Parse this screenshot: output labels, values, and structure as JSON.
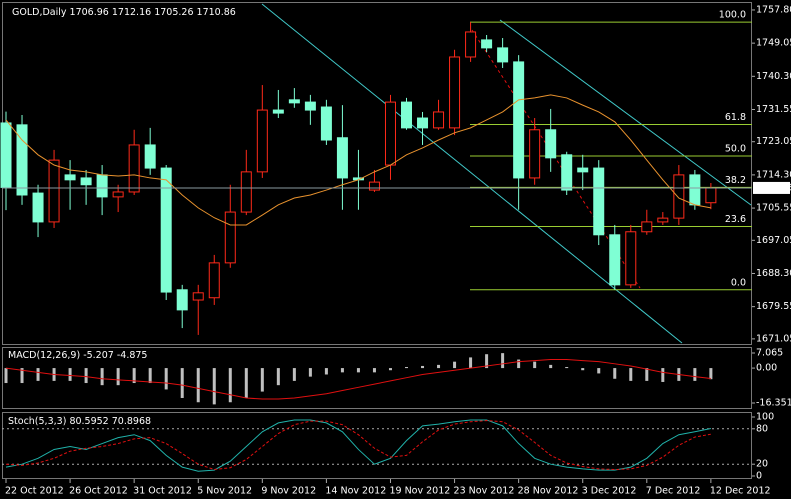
{
  "chart_data": [
    {
      "type": "candlestick",
      "title": "GOLD,Daily",
      "categories": [
        "22 Oct 2012",
        null,
        null,
        null,
        "26 Oct 2012",
        null,
        null,
        null,
        "31 Oct 2012",
        null,
        null,
        null,
        "5 Nov 2012",
        null,
        null,
        null,
        "9 Nov 2012",
        null,
        null,
        null,
        "14 Nov 2012",
        null,
        null,
        null,
        "19 Nov 2012",
        null,
        null,
        null,
        "23 Nov 2012",
        null,
        null,
        null,
        "28 Nov 2012",
        null,
        null,
        null,
        "3 Dec 2012",
        null,
        null,
        null,
        "7 Dec 2012",
        null,
        null,
        null,
        "12 Dec 2012"
      ],
      "open": [
        1728.0,
        1727.5,
        1709.5,
        1701.9,
        1714.3,
        1713.5,
        1714.3,
        1708.5,
        1709.8,
        1722.2,
        1716.1,
        1684.0,
        1681.3,
        1681.9,
        1691.1,
        1704.5,
        1715.1,
        1731.4,
        1734.1,
        1733.5,
        1732.2,
        1724.1,
        1713.5,
        1710.3,
        1716.9,
        1733.5,
        1729.3,
        1726.7,
        1726.7,
        1745.4,
        1749.9,
        1747.8,
        1744.1,
        1713.5,
        1726.2,
        1719.6,
        1716.1,
        1716.1,
        1698.5,
        1685.3,
        1699.3,
        1701.9,
        1702.9,
        1714.3,
        1706.96
      ],
      "high": [
        1731.0,
        1730.1,
        1711.7,
        1720.9,
        1718.2,
        1715.6,
        1716.9,
        1711.7,
        1726.2,
        1726.7,
        1716.9,
        1685.3,
        1685.3,
        1693.2,
        1711.7,
        1720.9,
        1738.0,
        1736.7,
        1737.2,
        1735.4,
        1734.1,
        1732.7,
        1720.9,
        1715.6,
        1735.4,
        1734.6,
        1730.9,
        1734.1,
        1747.3,
        1754.6,
        1751.2,
        1750.4,
        1745.9,
        1729.3,
        1731.7,
        1720.4,
        1719.6,
        1718.2,
        1701.1,
        1701.1,
        1705.1,
        1704.5,
        1716.9,
        1715.6,
        1712.16
      ],
      "low": [
        1705.0,
        1706.4,
        1697.9,
        1700.3,
        1705.1,
        1706.4,
        1703.7,
        1704.5,
        1709.0,
        1714.3,
        1681.3,
        1673.9,
        1672.1,
        1680.0,
        1689.8,
        1703.7,
        1713.5,
        1729.3,
        1732.0,
        1727.5,
        1722.2,
        1705.1,
        1705.1,
        1709.8,
        1713.0,
        1726.2,
        1722.2,
        1726.2,
        1724.8,
        1744.1,
        1746.7,
        1742.5,
        1705.1,
        1711.7,
        1715.1,
        1709.0,
        1710.3,
        1695.8,
        1684.0,
        1684.5,
        1698.5,
        1701.1,
        1701.1,
        1705.1,
        1705.26
      ],
      "close": [
        1711.0,
        1709.0,
        1701.9,
        1718.2,
        1713.0,
        1711.7,
        1708.5,
        1709.8,
        1722.2,
        1716.1,
        1683.4,
        1678.7,
        1683.2,
        1691.1,
        1704.5,
        1715.1,
        1731.4,
        1730.6,
        1733.3,
        1731.4,
        1723.5,
        1713.5,
        1713.0,
        1712.4,
        1733.5,
        1726.7,
        1726.7,
        1730.9,
        1745.4,
        1752.0,
        1747.8,
        1744.1,
        1713.5,
        1726.2,
        1718.8,
        1710.3,
        1715.1,
        1698.5,
        1685.3,
        1699.3,
        1701.9,
        1702.9,
        1714.3,
        1706.4,
        1710.86
      ],
      "up_color": "#ff2a1a",
      "down_color": "#7fffd4",
      "ma": {
        "color": "#e8922e",
        "values": [
          1728.8,
          1723.5,
          1719.6,
          1716.9,
          1715.6,
          1715.1,
          1714.3,
          1714.0,
          1714.3,
          1713.5,
          1713.0,
          1709.0,
          1705.6,
          1703.0,
          1701.1,
          1701.1,
          1703.7,
          1706.4,
          1708.2,
          1709.0,
          1710.3,
          1711.7,
          1713.0,
          1715.1,
          1716.9,
          1719.6,
          1721.4,
          1723.5,
          1725.4,
          1726.7,
          1728.8,
          1730.9,
          1734.1,
          1734.6,
          1735.4,
          1734.6,
          1732.7,
          1730.9,
          1728.3,
          1723.5,
          1718.2,
          1713.0,
          1708.2,
          1706.4,
          1705.6
        ]
      },
      "fib_color": "#9acd32",
      "fib_levels": [
        {
          "label": "100.0",
          "price": 1754.6
        },
        {
          "label": "61.8",
          "price": 1727.6
        },
        {
          "label": "50.0",
          "price": 1719.3
        },
        {
          "label": "38.2",
          "price": 1711.0
        },
        {
          "label": "23.6",
          "price": 1700.7
        },
        {
          "label": "0.0",
          "price": 1684.0
        }
      ],
      "ylim": [
        1669.7,
        1759.9
      ],
      "yticks": [
        {
          "value": 1757.8,
          "label": "1757.80"
        },
        1749.05,
        {
          "value": 1740.3,
          "label": "1740.30"
        },
        1731.55,
        1723.05,
        {
          "value": 1714.3,
          "label": "1714.30"
        },
        1705.55,
        1697.05,
        {
          "value": 1688.3,
          "label": "1688.30"
        },
        1679.55,
        1671.05
      ]
    },
    {
      "type": "macd",
      "title": "MACD(12,26,9)",
      "histogram": {
        "color": "#c0c0c0",
        "values": [
          -7,
          -7,
          -6,
          -6,
          -6,
          -7,
          -8,
          -8,
          -7,
          -7,
          -10,
          -14,
          -16,
          -17,
          -16,
          -14,
          -11,
          -8,
          -6,
          -4,
          -3,
          -2,
          -2,
          -2,
          -1,
          0.5,
          1,
          1.5,
          3,
          5,
          6.5,
          7,
          4,
          3,
          1.5,
          0.5,
          -1,
          -2.5,
          -5,
          -6,
          -6,
          -6.5,
          -6,
          -6,
          -5.207
        ]
      },
      "signal": {
        "color": "#e01010",
        "values": [
          0,
          -1,
          -2,
          -3,
          -3.5,
          -4,
          -5,
          -5.5,
          -6,
          -6.5,
          -7,
          -8,
          -9.5,
          -11,
          -12.5,
          -14,
          -14.5,
          -14.5,
          -14,
          -13,
          -12,
          -10.5,
          -9,
          -7.5,
          -6,
          -4.5,
          -3,
          -2,
          -1,
          0,
          1,
          2,
          3,
          3.5,
          4,
          4,
          3.5,
          3,
          2,
          1,
          -0.5,
          -2,
          -3,
          -4,
          -4.875
        ]
      },
      "ylim": [
        -19.16,
        9.875
      ],
      "yticks": [
        7.065,
        {
          "value": 0,
          "label": "0.00"
        },
        -16.351
      ]
    },
    {
      "type": "stochastic",
      "title": "Stoch(5,3,3)",
      "main": {
        "color": "#20b2aa",
        "values": [
          15,
          20,
          30,
          45,
          50,
          45,
          55,
          65,
          70,
          60,
          35,
          15,
          8,
          10,
          25,
          50,
          75,
          90,
          95,
          95,
          90,
          75,
          45,
          20,
          30,
          60,
          85,
          88,
          92,
          95,
          95,
          85,
          55,
          30,
          20,
          15,
          12,
          10,
          10,
          15,
          30,
          55,
          70,
          75,
          80.5952
        ]
      },
      "signal": {
        "color": "#e01010",
        "values": [
          20,
          18,
          22,
          30,
          42,
          47,
          50,
          55,
          63,
          65,
          55,
          38,
          20,
          11,
          14,
          28,
          50,
          72,
          87,
          93,
          93,
          87,
          70,
          47,
          32,
          35,
          58,
          78,
          88,
          92,
          94,
          92,
          78,
          57,
          35,
          22,
          16,
          12,
          11,
          12,
          18,
          32,
          52,
          66,
          70.8968
        ]
      },
      "ylim": [
        -5.1,
        108.5
      ],
      "yticks": [
        100,
        80,
        20,
        0
      ],
      "levels": [
        80,
        20
      ]
    }
  ]
}
